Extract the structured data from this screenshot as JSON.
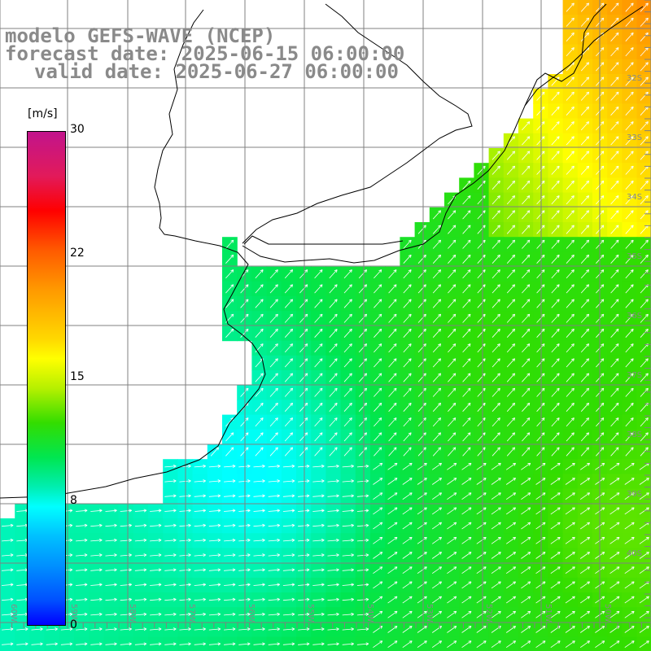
{
  "title": {
    "line1": "modelo GEFS-WAVE (NCEP)",
    "line2": "forecast date: 2025-06-15 06:00:00",
    "line3": "valid date: 2025-06-27 06:00:00"
  },
  "colorbar": {
    "unit": "[m/s]",
    "ticks": [
      "30",
      "22",
      "15",
      "8",
      "0"
    ],
    "colors": [
      "#0000ff",
      "#0090ff",
      "#00ffff",
      "#00e650",
      "#33dd00",
      "#ffff00",
      "#ff9900",
      "#ff0000",
      "#c2148c"
    ]
  },
  "latitude_labels": [
    "32S",
    "33S",
    "34S",
    "35S",
    "36S",
    "37S",
    "38S",
    "39S",
    "40S"
  ],
  "longitude_labels": [
    "60W",
    "59W",
    "58W",
    "57W",
    "56W",
    "55W",
    "54W",
    "53W",
    "52W",
    "51W",
    "50W"
  ],
  "wind_field": {
    "variable": "wind speed",
    "range": [
      0,
      30
    ],
    "dominant_direction": "from southwest toward northeast",
    "weaker_offshore_zone": "near 38S-40S, 57W-56W"
  }
}
